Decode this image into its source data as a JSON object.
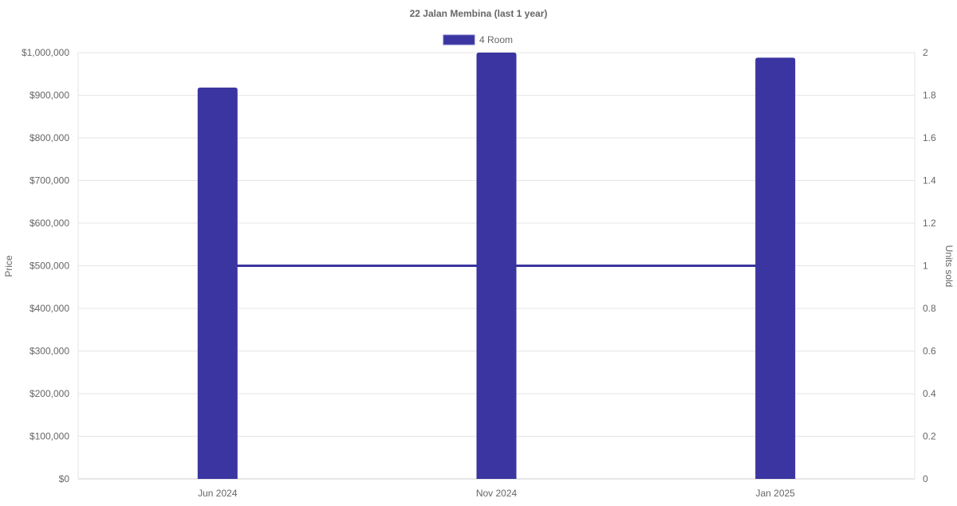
{
  "chart_data": {
    "type": "bar",
    "title": "22 Jalan Membina (last 1 year)",
    "categories": [
      "Jun 2024",
      "Nov 2024",
      "Jan 2025"
    ],
    "series": [
      {
        "name": "4 Room",
        "kind": "bar",
        "axis": "left",
        "values": [
          918000,
          1000000,
          988000
        ],
        "color": "#3a35a0"
      },
      {
        "kind": "line",
        "axis": "right",
        "values": [
          1,
          1,
          1
        ],
        "color": "#3a35a0"
      }
    ],
    "ylabel": "Price",
    "y2label": "Units sold",
    "ylim": [
      0,
      1000000
    ],
    "y2lim": [
      0,
      2
    ],
    "yticks": [
      "$0",
      "$100,000",
      "$200,000",
      "$300,000",
      "$400,000",
      "$500,000",
      "$600,000",
      "$700,000",
      "$800,000",
      "$900,000",
      "$1,000,000"
    ],
    "y2ticks": [
      "0",
      "0.2",
      "0.4",
      "0.6",
      "0.8",
      "1",
      "1.2",
      "1.4",
      "1.6",
      "1.8",
      "2"
    ],
    "grid": true,
    "legend": "top"
  }
}
